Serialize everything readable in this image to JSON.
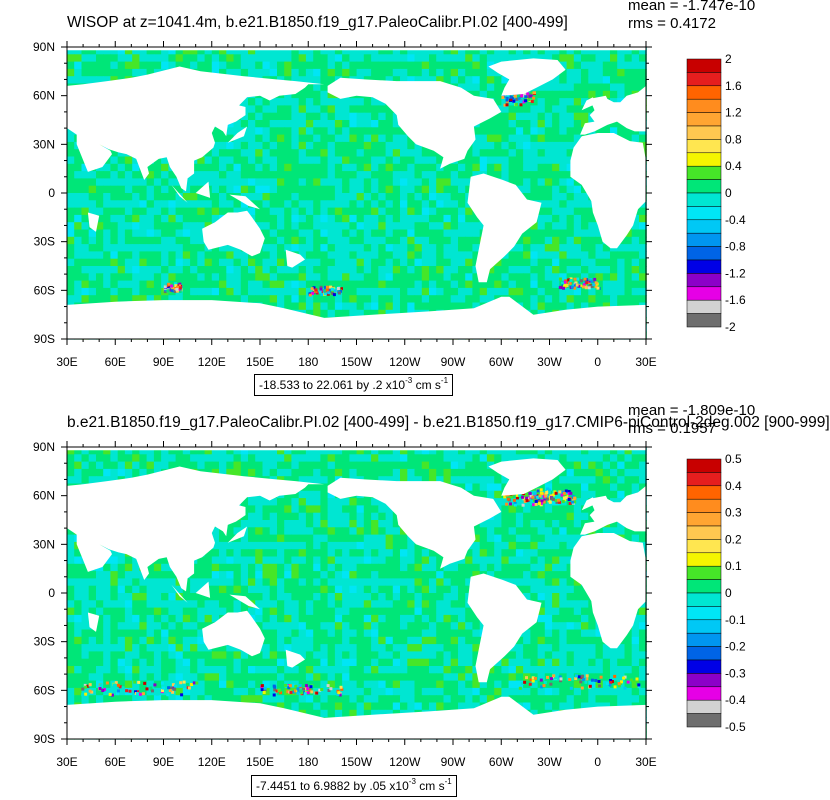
{
  "panels": [
    {
      "title": "WISOP at z=1041.4m, b.e21.B1850.f19_g17.PaleoCalibr.PI.02 [400-499]",
      "stats_mean": "mean = -1.747e-10",
      "stats_rms": "rms = 0.4172",
      "info": {
        "range_text": "-18.533 to 22.061 by .2 x10",
        "exp": "-3",
        "units": " cm s",
        "units_exp": "-1"
      }
    },
    {
      "title": "b.e21.B1850.f19_g17.PaleoCalibr.PI.02 [400-499] - b.e21.B1850.f19_g17.CMIP6-piControl-2deg.002 [900-999]",
      "stats_mean": "mean = -1.809e-10",
      "stats_rms": "rms = 0.1957",
      "info": {
        "range_text": "-7.4451 to 6.9882 by .05 x10",
        "exp": "-3",
        "units": " cm s",
        "units_exp": "-1"
      }
    }
  ],
  "chart_data": [
    {
      "type": "heatmap",
      "title": "WISOP at z=1041.4m, b.e21.B1850.f19_g17.PaleoCalibr.PI.02 [400-499]",
      "xticklabels": [
        "30E",
        "60E",
        "90E",
        "120E",
        "150E",
        "180",
        "150W",
        "120W",
        "90W",
        "60W",
        "30W",
        "0",
        "30E"
      ],
      "yticklabels": [
        "90N",
        "60N",
        "30N",
        "0",
        "30S",
        "60S",
        "90S"
      ],
      "xlim": [
        30,
        390
      ],
      "ylim": [
        -90,
        90
      ],
      "colorbar": {
        "labels": [
          "2",
          "1.6",
          "1.2",
          "0.8",
          "0.4",
          "0",
          "-0.4",
          "-0.8",
          "-1.2",
          "-1.6",
          "-2"
        ],
        "min": -2,
        "max": 2,
        "step": 0.2
      },
      "field_range": [
        -18.533,
        22.061
      ],
      "contour_interval": 0.2,
      "scale": "x10^-3",
      "units": "cm s^-1",
      "mean": -1.747e-10,
      "rms": 0.4172
    },
    {
      "type": "heatmap",
      "title": "b.e21.B1850.f19_g17.PaleoCalibr.PI.02 [400-499] - b.e21.B1850.f19_g17.CMIP6-piControl-2deg.002 [900-999]",
      "xticklabels": [
        "30E",
        "60E",
        "90E",
        "120E",
        "150E",
        "180",
        "150W",
        "120W",
        "90W",
        "60W",
        "30W",
        "0",
        "30E"
      ],
      "yticklabels": [
        "90N",
        "60N",
        "30N",
        "0",
        "30S",
        "60S",
        "90S"
      ],
      "xlim": [
        30,
        390
      ],
      "ylim": [
        -90,
        90
      ],
      "colorbar": {
        "labels": [
          "0.5",
          "0.4",
          "0.3",
          "0.2",
          "0.1",
          "0",
          "-0.1",
          "-0.2",
          "-0.3",
          "-0.4",
          "-0.5"
        ],
        "min": -0.5,
        "max": 0.5,
        "step": 0.05
      },
      "field_range": [
        -7.4451,
        6.9882
      ],
      "contour_interval": 0.05,
      "scale": "x10^-3",
      "units": "cm s^-1",
      "mean": -1.809e-10,
      "rms": 0.1957
    }
  ],
  "colormap": [
    "#6e6e6e",
    "#d2d2d2",
    "#e600e6",
    "#8c00c8",
    "#0000e6",
    "#0064e6",
    "#0096f0",
    "#00c8f5",
    "#00e6f5",
    "#00e6d2",
    "#00e678",
    "#46e628",
    "#f5f500",
    "#ffe650",
    "#ffc850",
    "#ffa532",
    "#ff8c1e",
    "#ff6400",
    "#e61e1e",
    "#c80000"
  ]
}
